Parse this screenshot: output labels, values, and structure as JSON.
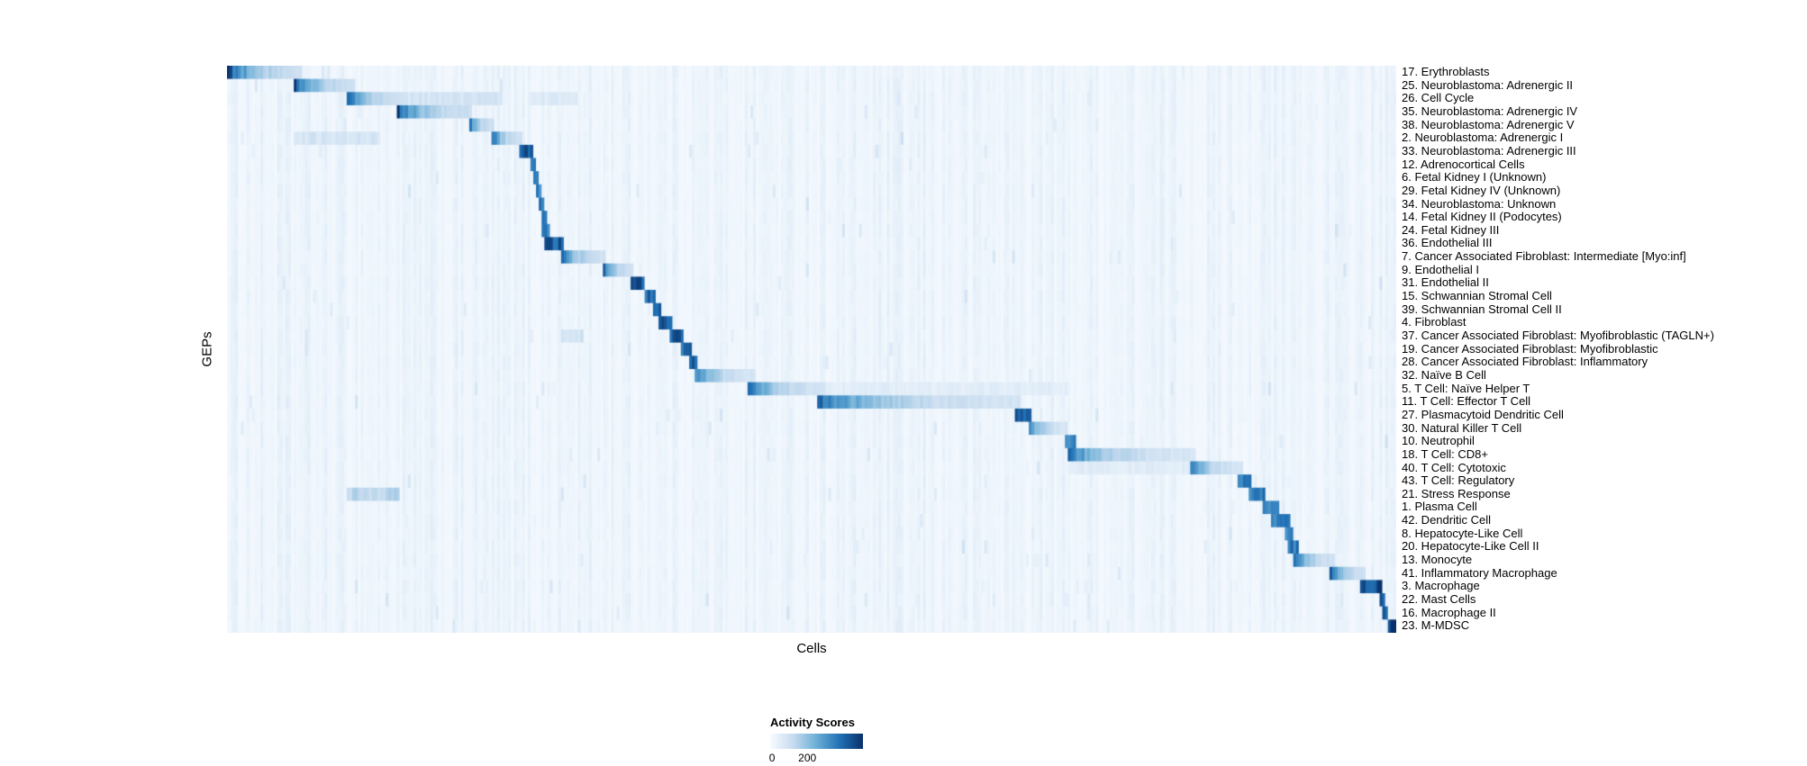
{
  "chart_data": {
    "type": "heatmap",
    "title": "",
    "xlabel": "Cells",
    "ylabel": "GEPs",
    "colormap": "Blues",
    "colormap_stops": [
      "#f7fbff",
      "#c6dbef",
      "#6baed6",
      "#2171b5",
      "#08306b"
    ],
    "colorbar": {
      "title": "Activity Scores",
      "ticks": [
        {
          "label": "0",
          "pos": 0.02
        },
        {
          "label": "200",
          "pos": 0.4
        }
      ]
    },
    "n_rows": 43,
    "value_note": "activity score bands expressed as fraction of cell axis [start,end] with peak intensity 0-1 (1 = approx. max of colorbar)",
    "rows": [
      {
        "label": "17. Erythroblasts",
        "band": [
          0.0,
          0.065
        ],
        "intensity": 1.0
      },
      {
        "label": "25. Neuroblastoma: Adrenergic II",
        "band": [
          0.058,
          0.11
        ],
        "intensity": 0.95
      },
      {
        "label": "26. Cell Cycle",
        "band": [
          0.102,
          0.152
        ],
        "intensity": 0.92,
        "extra": [
          [
            0.152,
            0.235,
            0.18
          ],
          [
            0.26,
            0.3,
            0.14
          ]
        ]
      },
      {
        "label": "35. Neuroblastoma: Adrenergic IV",
        "band": [
          0.145,
          0.21
        ],
        "intensity": 0.95
      },
      {
        "label": "38. Neuroblastoma: Adrenergic V",
        "band": [
          0.206,
          0.228
        ],
        "intensity": 0.9
      },
      {
        "label": "2. Neuroblastoma: Adrenergic I",
        "band": [
          0.226,
          0.252
        ],
        "intensity": 0.9,
        "extra": [
          [
            0.058,
            0.13,
            0.18
          ]
        ]
      },
      {
        "label": "33. Neuroblastoma: Adrenergic III",
        "band": [
          0.25,
          0.263
        ],
        "intensity": 0.85
      },
      {
        "label": "12. Adrenocortical Cells",
        "band": [
          0.259,
          0.265
        ],
        "intensity": 0.8
      },
      {
        "label": "6. Fetal Kidney I (Unknown)",
        "band": [
          0.262,
          0.267
        ],
        "intensity": 0.75
      },
      {
        "label": "29. Fetal Kidney IV (Unknown)",
        "band": [
          0.264,
          0.269
        ],
        "intensity": 0.72
      },
      {
        "label": "34. Neuroblastoma: Unknown",
        "band": [
          0.266,
          0.271
        ],
        "intensity": 0.72
      },
      {
        "label": "14. Fetal Kidney II (Podocytes)",
        "band": [
          0.268,
          0.273
        ],
        "intensity": 0.72
      },
      {
        "label": "24. Fetal Kidney III",
        "band": [
          0.27,
          0.275
        ],
        "intensity": 0.72
      },
      {
        "label": "36. Endothelial III",
        "band": [
          0.272,
          0.289
        ],
        "intensity": 0.85
      },
      {
        "label": "7. Cancer Associated Fibroblast: Intermediate [Myo:inf]",
        "band": [
          0.286,
          0.323
        ],
        "intensity": 0.9
      },
      {
        "label": "9. Endothelial I",
        "band": [
          0.321,
          0.348
        ],
        "intensity": 0.88
      },
      {
        "label": "31. Endothelial II",
        "band": [
          0.346,
          0.358
        ],
        "intensity": 0.85
      },
      {
        "label": "15. Schwannian Stromal Cell",
        "band": [
          0.356,
          0.366
        ],
        "intensity": 0.8
      },
      {
        "label": "39. Schwannian Stromal Cell II",
        "band": [
          0.364,
          0.372
        ],
        "intensity": 0.8
      },
      {
        "label": "4. Fibroblast",
        "band": [
          0.37,
          0.381
        ],
        "intensity": 0.85
      },
      {
        "label": "37. Cancer Associated Fibroblast: Myofibroblastic (TAGLN+)",
        "band": [
          0.379,
          0.39
        ],
        "intensity": 0.85,
        "extra": [
          [
            0.286,
            0.305,
            0.2
          ]
        ]
      },
      {
        "label": "19. Cancer Associated Fibroblast: Myofibroblastic",
        "band": [
          0.388,
          0.397
        ],
        "intensity": 0.8
      },
      {
        "label": "28. Cancer Associated Fibroblast: Inflammatory",
        "band": [
          0.395,
          0.403
        ],
        "intensity": 0.8
      },
      {
        "label": "32. Naïve B Cell",
        "band": [
          0.399,
          0.452
        ],
        "intensity": 0.78
      },
      {
        "label": "5. T Cell: Naïve Helper T",
        "band": [
          0.445,
          0.512
        ],
        "intensity": 0.85,
        "extra": [
          [
            0.512,
            0.72,
            0.11
          ]
        ]
      },
      {
        "label": "11. T Cell: Effector T Cell",
        "band": [
          0.505,
          0.678
        ],
        "intensity": 0.82
      },
      {
        "label": "27. Plasmacytoid Dendritic Cell",
        "band": [
          0.675,
          0.687
        ],
        "intensity": 0.8
      },
      {
        "label": "30. Natural Killer T Cell",
        "band": [
          0.685,
          0.719
        ],
        "intensity": 0.78
      },
      {
        "label": "10. Neutrophil",
        "band": [
          0.716,
          0.725
        ],
        "intensity": 0.72
      },
      {
        "label": "18. T Cell: CD8+",
        "band": [
          0.72,
          0.828
        ],
        "intensity": 0.75
      },
      {
        "label": "40. T Cell: Cytotoxic",
        "band": [
          0.824,
          0.868
        ],
        "intensity": 0.78,
        "extra": [
          [
            0.72,
            0.824,
            0.12
          ]
        ]
      },
      {
        "label": "43. T Cell: Regulatory",
        "band": [
          0.864,
          0.877
        ],
        "intensity": 0.72
      },
      {
        "label": "21. Stress Response",
        "band": [
          0.874,
          0.889
        ],
        "intensity": 0.72,
        "extra": [
          [
            0.103,
            0.148,
            0.28
          ]
        ]
      },
      {
        "label": "1. Plasma Cell",
        "band": [
          0.886,
          0.899
        ],
        "intensity": 0.75
      },
      {
        "label": "42. Dendritic Cell",
        "band": [
          0.894,
          0.909
        ],
        "intensity": 0.75
      },
      {
        "label": "8. Hepatocyte-Like Cell",
        "band": [
          0.904,
          0.913
        ],
        "intensity": 0.72
      },
      {
        "label": "20. Hepatocyte-Like Cell II",
        "band": [
          0.908,
          0.917
        ],
        "intensity": 0.72
      },
      {
        "label": "13. Monocyte",
        "band": [
          0.912,
          0.948
        ],
        "intensity": 0.88
      },
      {
        "label": "41. Inflammatory Macrophage",
        "band": [
          0.944,
          0.973
        ],
        "intensity": 0.88
      },
      {
        "label": "3. Macrophage",
        "band": [
          0.969,
          0.988
        ],
        "intensity": 0.9
      },
      {
        "label": "22. Mast Cells",
        "band": [
          0.985,
          0.991
        ],
        "intensity": 0.85
      },
      {
        "label": "16. Macrophage II",
        "band": [
          0.988,
          0.994
        ],
        "intensity": 0.85
      },
      {
        "label": "23. M-MDSC",
        "band": [
          0.992,
          1.0
        ],
        "intensity": 0.95
      }
    ]
  }
}
